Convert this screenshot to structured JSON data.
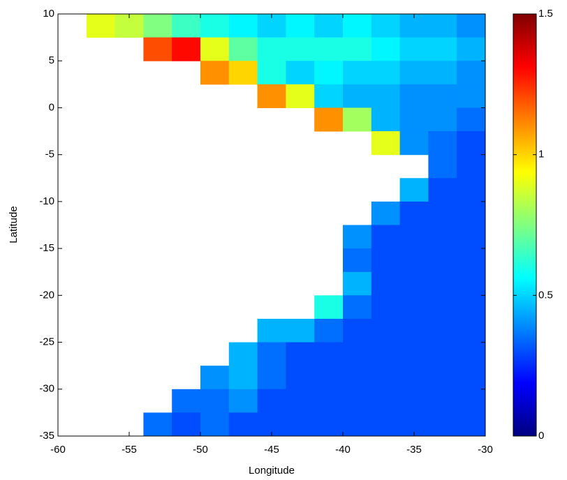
{
  "chart_data": {
    "type": "heatmap",
    "colormap": "jet",
    "xlabel": "Longitude",
    "ylabel": "Latitude",
    "xlim": [
      -60,
      -30
    ],
    "ylim": [
      -35,
      10
    ],
    "xticks": [
      -60,
      -55,
      -50,
      -45,
      -40,
      -35,
      -30
    ],
    "yticks": [
      10,
      5,
      0,
      -5,
      -10,
      -15,
      -20,
      -25,
      -30,
      -35
    ],
    "clim": [
      0,
      1.5
    ],
    "cticks": [
      0,
      0.5,
      1,
      1.5
    ],
    "x": [
      -59,
      -57,
      -55,
      -53,
      -51,
      -49,
      -47,
      -45,
      -43,
      -41,
      -39,
      -37,
      -35,
      -33,
      -31
    ],
    "y": [
      8.75,
      6.25,
      3.75,
      1.25,
      -1.25,
      -3.75,
      -6.25,
      -8.75,
      -11.25,
      -13.75,
      -16.25,
      -18.75,
      -21.25,
      -23.75,
      -26.25,
      -28.75,
      -31.25,
      -33.75
    ],
    "z": [
      [
        null,
        0.9,
        0.85,
        0.75,
        0.65,
        0.6,
        0.55,
        0.5,
        0.55,
        0.5,
        0.55,
        0.5,
        0.45,
        0.45,
        0.4
      ],
      [
        null,
        null,
        null,
        1.2,
        1.3,
        0.9,
        0.7,
        0.6,
        0.6,
        0.6,
        0.6,
        0.55,
        0.5,
        0.5,
        0.45
      ],
      [
        null,
        null,
        null,
        null,
        null,
        1.1,
        1.0,
        0.6,
        0.5,
        0.55,
        0.5,
        0.5,
        0.45,
        0.45,
        0.4
      ],
      [
        null,
        null,
        null,
        null,
        null,
        null,
        null,
        1.1,
        0.9,
        0.5,
        0.45,
        0.45,
        0.4,
        0.4,
        0.4
      ],
      [
        null,
        null,
        null,
        null,
        null,
        null,
        null,
        null,
        null,
        1.1,
        0.8,
        0.45,
        0.4,
        0.4,
        0.35
      ],
      [
        null,
        null,
        null,
        null,
        null,
        null,
        null,
        null,
        null,
        null,
        null,
        0.9,
        0.4,
        0.35,
        0.3
      ],
      [
        null,
        null,
        null,
        null,
        null,
        null,
        null,
        null,
        null,
        null,
        null,
        null,
        null,
        0.35,
        0.3
      ],
      [
        null,
        null,
        null,
        null,
        null,
        null,
        null,
        null,
        null,
        null,
        null,
        null,
        0.45,
        0.3,
        0.3
      ],
      [
        null,
        null,
        null,
        null,
        null,
        null,
        null,
        null,
        null,
        null,
        null,
        0.4,
        0.3,
        0.3,
        0.3
      ],
      [
        null,
        null,
        null,
        null,
        null,
        null,
        null,
        null,
        null,
        null,
        0.4,
        0.3,
        0.3,
        0.3,
        0.3
      ],
      [
        null,
        null,
        null,
        null,
        null,
        null,
        null,
        null,
        null,
        null,
        0.35,
        0.3,
        0.3,
        0.3,
        0.3
      ],
      [
        null,
        null,
        null,
        null,
        null,
        null,
        null,
        null,
        null,
        null,
        0.45,
        0.3,
        0.3,
        0.3,
        0.3
      ],
      [
        null,
        null,
        null,
        null,
        null,
        null,
        null,
        null,
        null,
        0.6,
        0.35,
        0.3,
        0.3,
        0.3,
        0.3
      ],
      [
        null,
        null,
        null,
        null,
        null,
        null,
        null,
        0.45,
        0.45,
        0.35,
        0.3,
        0.3,
        0.3,
        0.3,
        0.3
      ],
      [
        null,
        null,
        null,
        null,
        null,
        null,
        0.45,
        0.35,
        0.3,
        0.3,
        0.3,
        0.3,
        0.3,
        0.3,
        0.3
      ],
      [
        null,
        null,
        null,
        null,
        null,
        0.4,
        0.45,
        0.35,
        0.3,
        0.3,
        0.3,
        0.3,
        0.3,
        0.3,
        0.3
      ],
      [
        null,
        null,
        null,
        null,
        0.35,
        0.35,
        0.4,
        0.3,
        0.3,
        0.3,
        0.3,
        0.3,
        0.3,
        0.3,
        0.3
      ],
      [
        null,
        null,
        null,
        0.35,
        0.3,
        0.35,
        0.3,
        0.3,
        0.3,
        0.3,
        0.3,
        0.3,
        0.3,
        0.3,
        0.3
      ]
    ]
  }
}
